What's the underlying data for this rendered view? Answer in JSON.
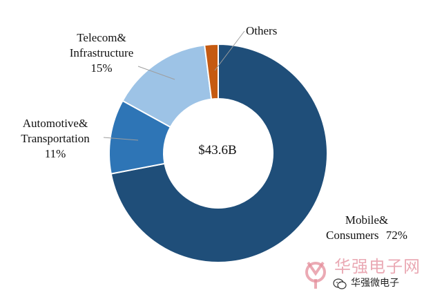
{
  "chart_data": {
    "type": "pie",
    "donut": true,
    "center_label": "$43.6B",
    "slices": [
      {
        "label": "Mobile& Consumers",
        "value": 72,
        "color": "#1f4e79"
      },
      {
        "label": "Automotive& Transportation",
        "value": 11,
        "color": "#2e75b6"
      },
      {
        "label": "Telecom& Infrastructure",
        "value": 15,
        "color": "#9dc3e6"
      },
      {
        "label": "Others",
        "value": 2,
        "color": "#c55a11"
      }
    ],
    "labels": {
      "mobile": {
        "line1": "Mobile&",
        "line2": "Consumers",
        "pct": "72%"
      },
      "automotive": {
        "line1": "Automotive&",
        "line2": "Transportation",
        "pct": "11%"
      },
      "telecom": {
        "line1": "Telecom&",
        "line2": "Infrastructure",
        "pct": "15%"
      },
      "others": {
        "line1": "Others"
      }
    }
  },
  "watermark": {
    "main_text": "华强电子网",
    "sub_text": "华强微电子",
    "logo_color": "#e48d9b",
    "wechat_icon": "wechat-icon"
  }
}
